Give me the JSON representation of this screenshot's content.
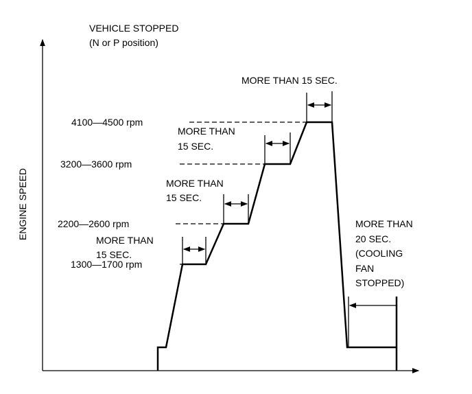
{
  "header": {
    "line1": "VEHICLE STOPPED",
    "line2": "(N or P position)"
  },
  "y_axis_label": "ENGINE SPEED",
  "levels": [
    {
      "label": "1300—1700 rpm"
    },
    {
      "label": "2200—2600 rpm"
    },
    {
      "label": "3200—3600 rpm"
    },
    {
      "label": "4100—4500 rpm"
    }
  ],
  "durations": [
    {
      "line1": "MORE THAN",
      "line2": "15 SEC."
    },
    {
      "line1": "MORE THAN",
      "line2": "15 SEC."
    },
    {
      "line1": "MORE THAN",
      "line2": "15 SEC."
    },
    {
      "line1": "MORE THAN 15 SEC."
    }
  ],
  "cooldown": {
    "line1": "MORE THAN",
    "line2": "20 SEC.",
    "line3": "(COOLING",
    "line4": "FAN",
    "line5": "STOPPED)"
  },
  "line_color": "#000000"
}
